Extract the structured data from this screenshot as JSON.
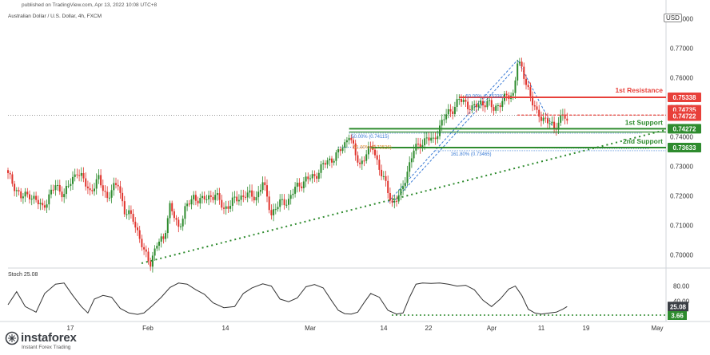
{
  "header": {
    "published": "published on TradingView.com, Apr 13, 2022 10:08 UTC+8",
    "symbol": "Australian Dollar / U.S. Dollar, 4h, FXCM",
    "currency": "USD"
  },
  "brand": {
    "name": "instaforex",
    "tagline": "Instant Forex Trading"
  },
  "colors": {
    "up": "#2e8b2e",
    "down": "#e0342d",
    "resistance": "#e8403a",
    "support": "#2e8b2e",
    "trendline": "#2e8b2e",
    "fib": "#3a7bd5",
    "stoch": "#333333"
  },
  "chart_data": [
    {
      "type": "candlestick",
      "title": "Australian Dollar / U.S. Dollar, 4h, FXCM",
      "ylim": [
        0.6955,
        0.7815
      ],
      "y_ticks": [
        "0.70000",
        "0.71000",
        "0.72000",
        "0.73000",
        "0.74000",
        "0.75000",
        "0.76000",
        "0.77000",
        "0.78000"
      ],
      "y_tick_values": [
        0.7,
        0.71,
        0.72,
        0.73,
        0.74,
        0.75,
        0.76,
        0.77,
        0.78
      ],
      "x_ticks": [
        "17",
        "Feb",
        "14",
        "Mar",
        "14",
        "22",
        "Apr",
        "11",
        "19",
        "May"
      ],
      "path": [
        [
          0,
          0.727
        ],
        [
          6,
          0.7195
        ],
        [
          10,
          0.7205
        ],
        [
          16,
          0.716
        ],
        [
          22,
          0.7235
        ],
        [
          26,
          0.7205
        ],
        [
          32,
          0.7285
        ],
        [
          38,
          0.7215
        ],
        [
          42,
          0.7255
        ],
        [
          46,
          0.7195
        ],
        [
          51,
          0.7245
        ],
        [
          54,
          0.7145
        ],
        [
          58,
          0.7125
        ],
        [
          63,
          0.7008
        ],
        [
          66,
          0.6975
        ],
        [
          69,
          0.7035
        ],
        [
          72,
          0.7055
        ],
        [
          75,
          0.7165
        ],
        [
          79,
          0.709
        ],
        [
          82,
          0.7155
        ],
        [
          86,
          0.7195
        ],
        [
          90,
          0.7185
        ],
        [
          96,
          0.7205
        ],
        [
          100,
          0.7155
        ],
        [
          104,
          0.718
        ],
        [
          110,
          0.7205
        ],
        [
          115,
          0.7195
        ],
        [
          118,
          0.7245
        ],
        [
          122,
          0.714
        ],
        [
          126,
          0.7175
        ],
        [
          130,
          0.7185
        ],
        [
          133,
          0.7225
        ],
        [
          138,
          0.7255
        ],
        [
          142,
          0.7265
        ],
        [
          146,
          0.7305
        ],
        [
          150,
          0.7325
        ],
        [
          153,
          0.7345
        ],
        [
          156,
          0.7375
        ],
        [
          158,
          0.7412
        ],
        [
          161,
          0.7335
        ],
        [
          163,
          0.7305
        ],
        [
          166,
          0.7345
        ],
        [
          169,
          0.7365
        ],
        [
          172,
          0.7295
        ],
        [
          175,
          0.7235
        ],
        [
          178,
          0.7175
        ],
        [
          182,
          0.7205
        ],
        [
          185,
          0.7285
        ],
        [
          188,
          0.7355
        ],
        [
          191,
          0.7375
        ],
        [
          194,
          0.7395
        ],
        [
          197,
          0.7385
        ],
        [
          200,
          0.7435
        ],
        [
          203,
          0.7475
        ],
        [
          206,
          0.7495
        ],
        [
          209,
          0.7525
        ],
        [
          212,
          0.7515
        ],
        [
          215,
          0.7495
        ],
        [
          219,
          0.7515
        ],
        [
          222,
          0.7515
        ],
        [
          225,
          0.7495
        ],
        [
          228,
          0.7515
        ],
        [
          231,
          0.7535
        ],
        [
          234,
          0.7545
        ],
        [
          236,
          0.7655
        ],
        [
          238,
          0.7625
        ],
        [
          241,
          0.7565
        ],
        [
          243,
          0.7515
        ],
        [
          245,
          0.7475
        ],
        [
          248,
          0.7465
        ],
        [
          251,
          0.7445
        ],
        [
          253,
          0.7425
        ],
        [
          255,
          0.7455
        ],
        [
          257,
          0.7475
        ],
        [
          259,
          0.7455
        ]
      ]
    },
    {
      "type": "line",
      "title": "Stoch 25.08",
      "ylim": [
        0,
        100
      ],
      "y_ticks": [
        "40.00",
        "80.00"
      ],
      "y_tick_values": [
        40,
        80
      ],
      "series": [
        {
          "values": [
            [
              0,
              30
            ],
            [
              4,
              65
            ],
            [
              8,
              25
            ],
            [
              13,
              10
            ],
            [
              17,
              60
            ],
            [
              22,
              85
            ],
            [
              26,
              88
            ],
            [
              30,
              55
            ],
            [
              34,
              25
            ],
            [
              37,
              8
            ],
            [
              40,
              45
            ],
            [
              44,
              55
            ],
            [
              48,
              50
            ],
            [
              52,
              20
            ],
            [
              56,
              8
            ],
            [
              60,
              4
            ],
            [
              63,
              8
            ],
            [
              67,
              28
            ],
            [
              71,
              50
            ],
            [
              75,
              76
            ],
            [
              79,
              88
            ],
            [
              83,
              85
            ],
            [
              87,
              70
            ],
            [
              91,
              58
            ],
            [
              95,
              35
            ],
            [
              100,
              22
            ],
            [
              105,
              25
            ],
            [
              109,
              60
            ],
            [
              113,
              75
            ],
            [
              118,
              86
            ],
            [
              122,
              80
            ],
            [
              126,
              45
            ],
            [
              130,
              38
            ],
            [
              134,
              48
            ],
            [
              138,
              78
            ],
            [
              142,
              84
            ],
            [
              146,
              75
            ],
            [
              150,
              40
            ],
            [
              153,
              15
            ],
            [
              156,
              6
            ],
            [
              159,
              5
            ],
            [
              162,
              10
            ],
            [
              165,
              36
            ],
            [
              168,
              60
            ],
            [
              172,
              50
            ],
            [
              176,
              15
            ],
            [
              180,
              5
            ],
            [
              183,
              8
            ],
            [
              186,
              50
            ],
            [
              189,
              85
            ],
            [
              192,
              88
            ],
            [
              196,
              87
            ],
            [
              200,
              88
            ],
            [
              204,
              85
            ],
            [
              208,
              80
            ],
            [
              212,
              82
            ],
            [
              216,
              70
            ],
            [
              220,
              42
            ],
            [
              224,
              25
            ],
            [
              228,
              45
            ],
            [
              232,
              72
            ],
            [
              235,
              80
            ],
            [
              238,
              55
            ],
            [
              241,
              18
            ],
            [
              244,
              8
            ],
            [
              247,
              5
            ],
            [
              251,
              8
            ],
            [
              254,
              10
            ],
            [
              257,
              18
            ],
            [
              259,
              25.08
            ]
          ]
        }
      ]
    }
  ],
  "levels": {
    "resistance1": {
      "label": "1st Resistance",
      "value": "0.75338",
      "price": 0.75338
    },
    "support1": {
      "label": "1st Support",
      "value": "0.74272",
      "price": 0.74272
    },
    "support2": {
      "label": "2nd Support",
      "value": "0.73633",
      "price": 0.73633
    },
    "current_high": {
      "value": "0.74735",
      "price": 0.74735
    },
    "current_price": {
      "value": "0.74722",
      "price": 0.74722
    }
  },
  "fib_labels": {
    "f50": "50.00% (0.74115)",
    "f618": "61.80% (0.73526)",
    "f1618": "161.80% (0.73465)",
    "f_top": "50.00% (0.75338)"
  },
  "stoch": {
    "label": "Stoch 25.08",
    "value_badge": "25.08",
    "low_badge": "3.66"
  }
}
